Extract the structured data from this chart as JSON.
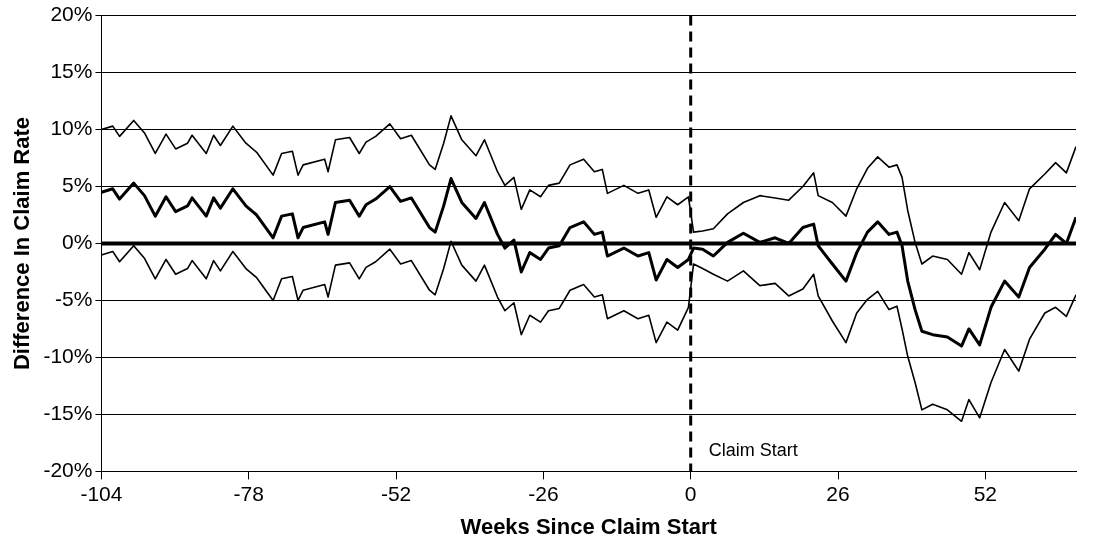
{
  "chart_data": {
    "type": "line",
    "xlabel": "Weeks Since Claim Start",
    "ylabel": "Difference In Claim Rate",
    "x": [
      -104,
      -102,
      -100.8,
      -98.3,
      -96.4,
      -94.5,
      -92.6,
      -90.9,
      -88.8,
      -88,
      -85.5,
      -84.2,
      -83,
      -80.8,
      -78.5,
      -76.6,
      -73.7,
      -72.2,
      -70.3,
      -69.3,
      -68.4,
      -64.6,
      -64,
      -62.7,
      -60.2,
      -58.5,
      -57.3,
      -55.6,
      -53.1,
      -51.2,
      -49.3,
      -46.1,
      -45.1,
      -43.6,
      -42.3,
      -40.4,
      -37.9,
      -36.4,
      -34.1,
      -32.8,
      -31.2,
      -29.9,
      -28.4,
      -26.5,
      -25.1,
      -23.2,
      -21.3,
      -18.9,
      -17,
      -15.6,
      -14.7,
      -11.8,
      -9.3,
      -7.4,
      -6.1,
      -4.2,
      -2.3,
      -0.4,
      0.5,
      2.1,
      4,
      6.5,
      9.3,
      12.2,
      14.9,
      17.3,
      19.8,
      21.7,
      22.5,
      25,
      27.4,
      29.3,
      31.2,
      33,
      35,
      36.4,
      37.3,
      38.3,
      39.6,
      40.8,
      42.7,
      45.3,
      47.8,
      49.1,
      51,
      53,
      55.4,
      57.9,
      59.8,
      62.5,
      64.4,
      66.3,
      68
    ],
    "series": [
      {
        "color": "#000000",
        "values": [
          10.0,
          10.3,
          9.4,
          10.8,
          9.7,
          7.9,
          9.6,
          8.3,
          8.8,
          9.5,
          7.9,
          9.5,
          8.6,
          10.3,
          8.8,
          8.0,
          6.0,
          7.9,
          8.1,
          6.0,
          6.9,
          7.4,
          6.3,
          9.1,
          9.3,
          7.9,
          8.9,
          9.4,
          10.5,
          9.2,
          9.5,
          6.9,
          6.5,
          8.8,
          11.2,
          9.1,
          7.7,
          9.1,
          6.3,
          5.1,
          5.8,
          3.0,
          4.7,
          4.1,
          5.1,
          5.3,
          6.9,
          7.4,
          6.3,
          6.5,
          4.4,
          5.1,
          4.4,
          4.7,
          2.3,
          4.1,
          3.4,
          4.1,
          1.0,
          1.1,
          1.3,
          2.6,
          3.6,
          4.2,
          4.0,
          3.8,
          5.0,
          6.2,
          4.2,
          3.6,
          2.4,
          4.8,
          6.6,
          7.6,
          6.7,
          6.9,
          5.8,
          2.9,
          0.1,
          -1.8,
          -1.1,
          -1.4,
          -2.7,
          -0.8,
          -2.3,
          1.0,
          3.6,
          2.0,
          4.8,
          6.1,
          7.1,
          6.2,
          8.5
        ]
      },
      {
        "color": "#000000",
        "values": [
          4.5,
          4.8,
          3.9,
          5.3,
          4.2,
          2.4,
          4.1,
          2.8,
          3.3,
          4.0,
          2.4,
          4.0,
          3.1,
          4.8,
          3.3,
          2.5,
          0.5,
          2.4,
          2.6,
          0.5,
          1.4,
          1.9,
          0.8,
          3.6,
          3.8,
          2.4,
          3.4,
          3.9,
          5.0,
          3.7,
          4.0,
          1.4,
          1.0,
          3.3,
          5.7,
          3.6,
          2.2,
          3.6,
          0.8,
          -0.4,
          0.3,
          -2.5,
          -0.8,
          -1.4,
          -0.4,
          -0.2,
          1.4,
          1.9,
          0.8,
          1.0,
          -1.1,
          -0.4,
          -1.1,
          -0.8,
          -3.2,
          -1.4,
          -2.1,
          -1.4,
          -0.4,
          -0.5,
          -1.1,
          0.1,
          0.9,
          0.1,
          0.5,
          0,
          1.4,
          1.7,
          -0.2,
          -1.8,
          -3.3,
          -0.8,
          1.0,
          1.9,
          0.8,
          1.0,
          -0.2,
          -3.3,
          -5.8,
          -7.7,
          -8.0,
          -8.2,
          -9.0,
          -7.5,
          -8.9,
          -5.6,
          -3.3,
          -4.7,
          -2.1,
          -0.5,
          0.8,
          0,
          2.3
        ]
      },
      {
        "color": "#000000",
        "values": [
          -1.0,
          -0.7,
          -1.6,
          -0.2,
          -1.3,
          -3.1,
          -1.4,
          -2.7,
          -2.2,
          -1.5,
          -3.1,
          -1.5,
          -2.4,
          -0.7,
          -2.2,
          -3.0,
          -5.0,
          -3.1,
          -2.9,
          -5.0,
          -4.1,
          -3.6,
          -4.7,
          -1.9,
          -1.7,
          -3.1,
          -2.1,
          -1.6,
          -0.5,
          -1.8,
          -1.5,
          -4.1,
          -4.5,
          -2.2,
          0.2,
          -1.9,
          -3.3,
          -1.9,
          -4.7,
          -5.9,
          -5.2,
          -8.0,
          -6.3,
          -6.9,
          -5.9,
          -5.7,
          -4.1,
          -3.6,
          -4.7,
          -4.5,
          -6.6,
          -5.9,
          -6.6,
          -6.3,
          -8.7,
          -6.9,
          -7.6,
          -5.6,
          -1.8,
          -2.2,
          -2.7,
          -3.3,
          -2.4,
          -3.7,
          -3.5,
          -4.6,
          -4.0,
          -2.7,
          -4.6,
          -6.8,
          -8.7,
          -6.1,
          -4.9,
          -4.2,
          -5.8,
          -5.5,
          -7.5,
          -9.9,
          -12.2,
          -14.6,
          -14.1,
          -14.6,
          -15.6,
          -13.7,
          -15.3,
          -12.2,
          -9.3,
          -11.2,
          -8.4,
          -6.1,
          -5.6,
          -6.4,
          -4.5
        ]
      }
    ],
    "xlim": [
      -104,
      68
    ],
    "xticks": [
      -104,
      -78,
      -52,
      -26,
      0,
      26,
      52
    ],
    "ylim": [
      -20,
      20
    ],
    "yticks": [
      {
        "value": -20,
        "label": "-20%"
      },
      {
        "value": -15,
        "label": "-15%"
      },
      {
        "value": -10,
        "label": "-10%"
      },
      {
        "value": -5,
        "label": "-5%"
      },
      {
        "value": 0,
        "label": "0%"
      },
      {
        "value": 5,
        "label": "5%"
      },
      {
        "value": 10,
        "label": "10%"
      },
      {
        "value": 15,
        "label": "15%"
      },
      {
        "value": 20,
        "label": "20%"
      }
    ],
    "ref_lines": [
      {
        "axis": "y",
        "value": 0,
        "color": "#000000",
        "line_style": "solid"
      },
      {
        "axis": "x",
        "value": 0,
        "label": "Claim Start",
        "color": "#000000",
        "line_style": "dashed"
      }
    ],
    "grid": "y",
    "legend": false,
    "marker": "none",
    "line_style": "solid"
  }
}
